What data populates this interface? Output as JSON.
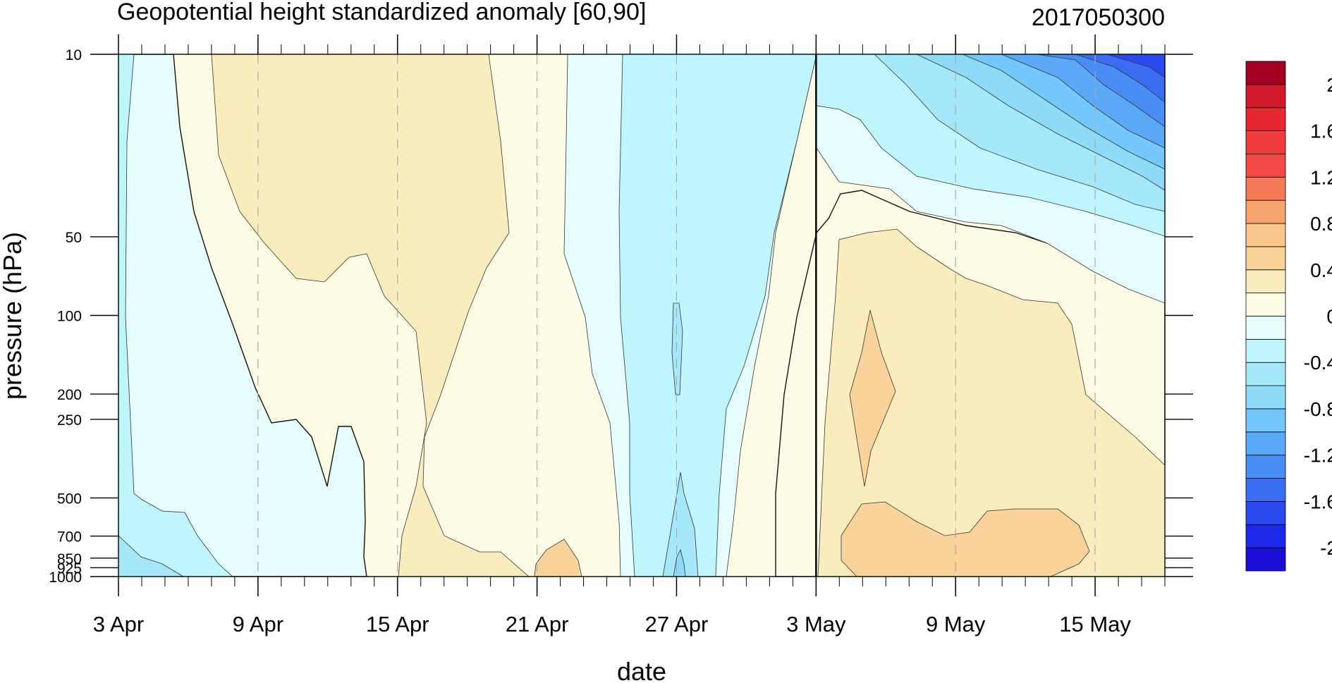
{
  "chart_data": {
    "type": "heatmap",
    "subtype": "filled-contour",
    "title": "Geopotential height standardized anomaly [60,90]",
    "right_title": "2017050300",
    "xlabel": "date",
    "ylabel": "pressure (hPa)",
    "x_range": [
      "2017-04-03",
      "2017-05-18"
    ],
    "y_axis": {
      "scale": "log",
      "reversed": true,
      "range": [
        1000,
        10
      ]
    },
    "x_ticks": [
      {
        "date": "2017-04-03",
        "label": "3 Apr"
      },
      {
        "date": "2017-04-09",
        "label": "9 Apr"
      },
      {
        "date": "2017-04-15",
        "label": "15 Apr"
      },
      {
        "date": "2017-04-21",
        "label": "21 Apr"
      },
      {
        "date": "2017-04-27",
        "label": "27 Apr"
      },
      {
        "date": "2017-05-03",
        "label": "3 May"
      },
      {
        "date": "2017-05-09",
        "label": "9 May"
      },
      {
        "date": "2017-05-15",
        "label": "15 May"
      }
    ],
    "y_ticks": [
      {
        "value": 10,
        "label": "10"
      },
      {
        "value": 50,
        "label": "50"
      },
      {
        "value": 100,
        "label": "100"
      },
      {
        "value": 200,
        "label": "200"
      },
      {
        "value": 250,
        "label": "250"
      },
      {
        "value": 500,
        "label": "500"
      },
      {
        "value": 700,
        "label": "700"
      },
      {
        "value": 850,
        "label": "850"
      },
      {
        "value": 925,
        "label": "925"
      },
      {
        "value": 1000,
        "label": "1000"
      }
    ],
    "vertical_line_date": "2017-05-03",
    "colorbar": {
      "levels": [
        -2.2,
        -2.0,
        -1.8,
        -1.6,
        -1.4,
        -1.2,
        -1.0,
        -0.8,
        -0.6,
        -0.4,
        -0.2,
        0.0,
        0.2,
        0.4,
        0.6,
        0.8,
        1.0,
        1.2,
        1.4,
        1.6,
        1.8,
        2.0,
        2.2
      ],
      "colors": [
        "#1a0fd4",
        "#1e28e8",
        "#2a4af0",
        "#3a6ef2",
        "#4a8df5",
        "#5ca9f8",
        "#74c8fb",
        "#8fdaf9",
        "#a5e8fa",
        "#bff5fc",
        "#e5fdfd",
        "#fffce6",
        "#fbecbe",
        "#fad39b",
        "#f9c58c",
        "#f6a570",
        "#f57a58",
        "#f24b45",
        "#ee3d3b",
        "#e82730",
        "#d01a2a",
        "#a50021"
      ],
      "labels": [
        {
          "value": 2.0,
          "label": "2"
        },
        {
          "value": 1.6,
          "label": "1.6"
        },
        {
          "value": 1.2,
          "label": "1.2"
        },
        {
          "value": 0.8,
          "label": "0.8"
        },
        {
          "value": 0.4,
          "label": "0.4"
        },
        {
          "value": 0.0,
          "label": "0"
        },
        {
          "value": -0.4,
          "label": "-0.4"
        },
        {
          "value": -0.8,
          "label": "-0.8"
        },
        {
          "value": -1.2,
          "label": "-1.2"
        },
        {
          "value": -1.6,
          "label": "-1.6"
        },
        {
          "value": -2.0,
          "label": "-2"
        }
      ]
    }
  }
}
